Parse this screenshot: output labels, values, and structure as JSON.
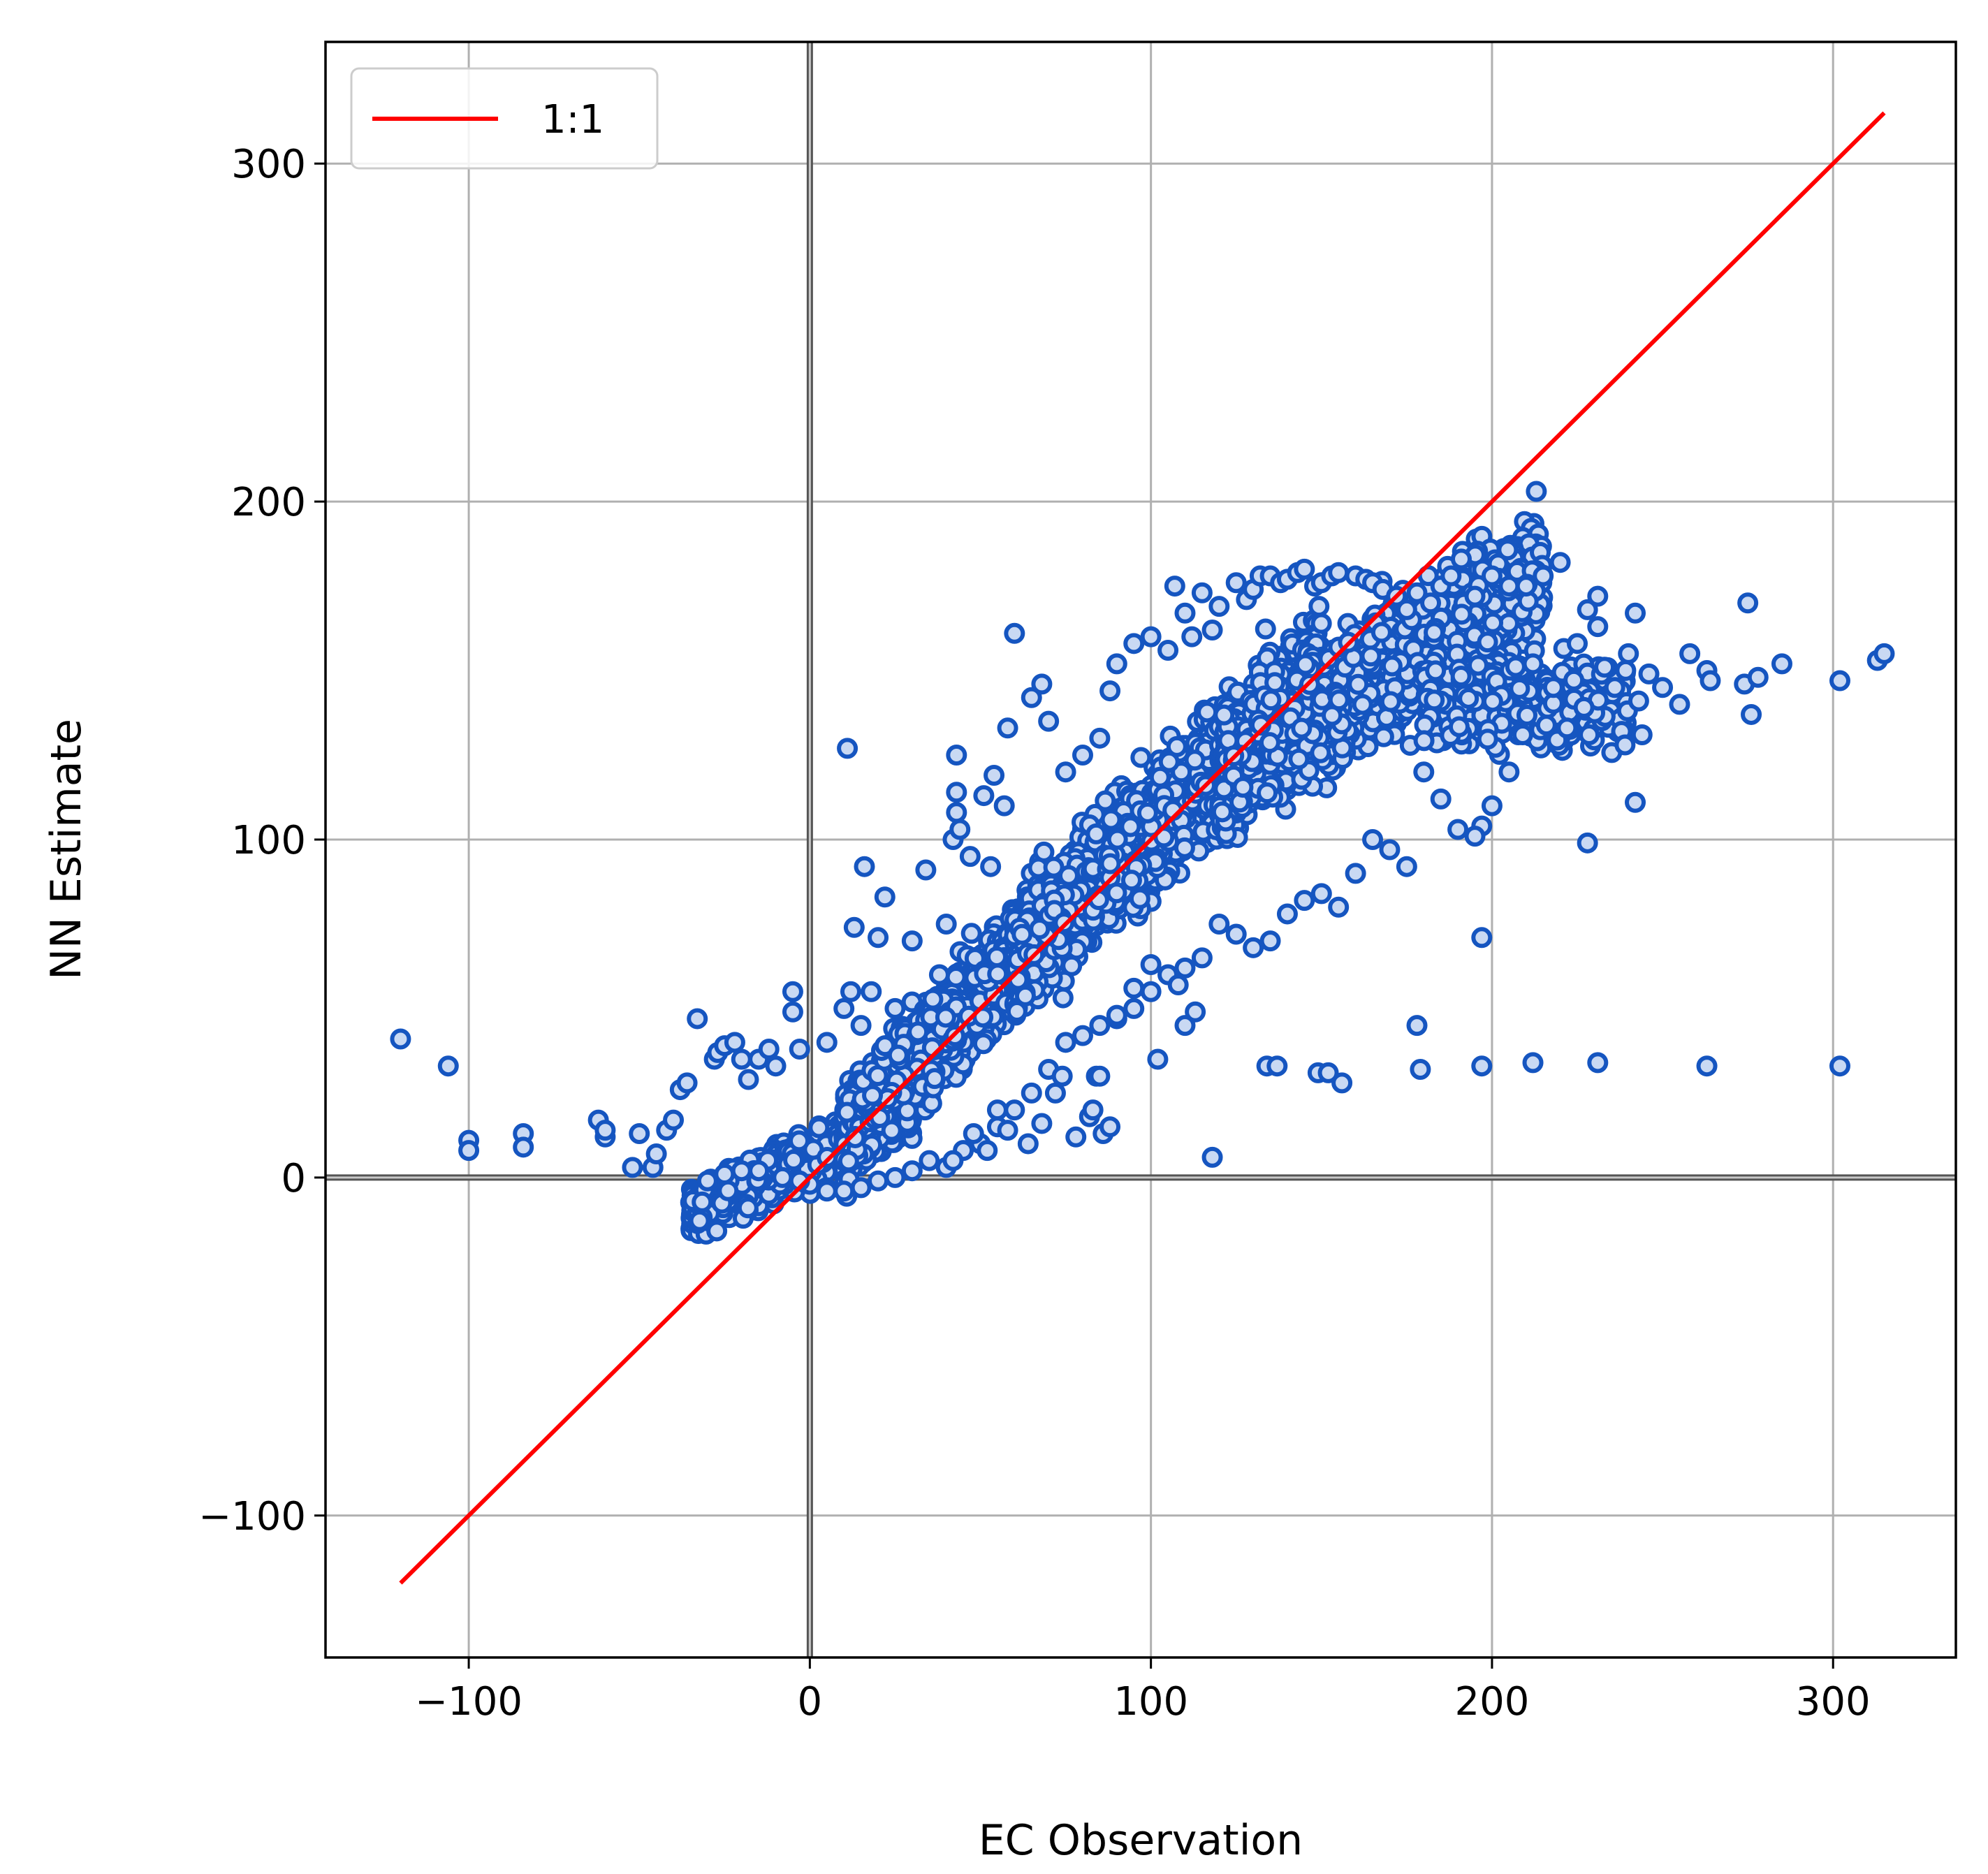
{
  "chart_data": {
    "type": "scatter",
    "title": "",
    "xlabel": "EC Observation",
    "ylabel": "NN Estimate",
    "xlim": [
      -142,
      336
    ],
    "ylim": [
      -142,
      336
    ],
    "x_ticks": [
      -100,
      0,
      100,
      200,
      300
    ],
    "y_ticks": [
      -100,
      0,
      100,
      200,
      300
    ],
    "x_tick_labels": [
      "−100",
      "0",
      "100",
      "200",
      "300"
    ],
    "y_tick_labels": [
      "−100",
      "0",
      "100",
      "200",
      "300"
    ],
    "grid": true,
    "legend": {
      "position": "top-left",
      "entries": [
        {
          "label": "1:1",
          "color": "#ff0000",
          "kind": "line"
        }
      ]
    },
    "reference_line": {
      "name": "1:1",
      "x": [
        -120,
        315
      ],
      "y": [
        -120,
        315
      ],
      "color": "#ff0000"
    },
    "zero_lines": {
      "x": 0,
      "y": 0
    },
    "scatter": {
      "marker": "open-circle",
      "edge_color": "#1555c0",
      "face_color": "#c9d9f3",
      "dense_regions": [
        {
          "n": 1100,
          "x_range": [
            -35,
            30
          ],
          "x_c": -2,
          "y_intercept": 6,
          "slope": 0.45,
          "y_spread": 7
        },
        {
          "n": 2000,
          "x_range": [
            10,
            85
          ],
          "x_c": 47,
          "y_intercept": 2,
          "slope": 1.05,
          "y_spread": 13
        },
        {
          "n": 2200,
          "x_range": [
            60,
            150
          ],
          "x_c": 105,
          "y_intercept": 8,
          "slope": 0.95,
          "y_spread": 16
        },
        {
          "n": 1600,
          "x_range": [
            120,
            215
          ],
          "x_c": 165,
          "y_intercept": 40,
          "slope": 0.65,
          "y_spread": 17
        },
        {
          "n": 400,
          "x_range": [
            180,
            240
          ],
          "x_c": 210,
          "y_intercept": 140,
          "slope": 0.0,
          "y_spread": 12
        }
      ],
      "points": [
        [
          -120,
          41
        ],
        [
          -106,
          33
        ],
        [
          -100,
          11
        ],
        [
          -100,
          8
        ],
        [
          -84,
          13
        ],
        [
          -84,
          9
        ],
        [
          -62,
          17
        ],
        [
          -60,
          12
        ],
        [
          -60,
          14
        ],
        [
          -52,
          3
        ],
        [
          -50,
          13
        ],
        [
          -46,
          3
        ],
        [
          -45,
          7
        ],
        [
          -42,
          14
        ],
        [
          -40,
          17
        ],
        [
          -38,
          26
        ],
        [
          -36,
          28
        ],
        [
          -33,
          47
        ],
        [
          -28,
          35
        ],
        [
          -27,
          37
        ],
        [
          -25,
          39
        ],
        [
          -22,
          40
        ],
        [
          -20,
          35
        ],
        [
          -18,
          29
        ],
        [
          -15,
          35
        ],
        [
          -12,
          38
        ],
        [
          -10,
          33
        ],
        [
          -5,
          55
        ],
        [
          -5,
          49
        ],
        [
          -3,
          38
        ],
        [
          5,
          40
        ],
        [
          10,
          50
        ],
        [
          12,
          55
        ],
        [
          15,
          45
        ],
        [
          11,
          127
        ],
        [
          13,
          74
        ],
        [
          16,
          92
        ],
        [
          18,
          55
        ],
        [
          20,
          71
        ],
        [
          22,
          83
        ],
        [
          25,
          50
        ],
        [
          30,
          70
        ],
        [
          34,
          91
        ],
        [
          38,
          60
        ],
        [
          40,
          75
        ],
        [
          42,
          100
        ],
        [
          43,
          108
        ],
        [
          43,
          114
        ],
        [
          43,
          125
        ],
        [
          44,
          103
        ],
        [
          47,
          95
        ],
        [
          51,
          113
        ],
        [
          53,
          92
        ],
        [
          54,
          119
        ],
        [
          57,
          110
        ],
        [
          58,
          133
        ],
        [
          60,
          161
        ],
        [
          65,
          142
        ],
        [
          68,
          146
        ],
        [
          70,
          135
        ],
        [
          75,
          120
        ],
        [
          80,
          125
        ],
        [
          85,
          130
        ],
        [
          88,
          144
        ],
        [
          90,
          152
        ],
        [
          95,
          158
        ],
        [
          100,
          160
        ],
        [
          105,
          156
        ],
        [
          107,
          175
        ],
        [
          110,
          167
        ],
        [
          112,
          160
        ],
        [
          115,
          173
        ],
        [
          118,
          162
        ],
        [
          120,
          169
        ],
        [
          125,
          176
        ],
        [
          128,
          171
        ],
        [
          130,
          174
        ],
        [
          132,
          178
        ],
        [
          135,
          178
        ],
        [
          138,
          176
        ],
        [
          140,
          177
        ],
        [
          143,
          179
        ],
        [
          145,
          180
        ],
        [
          148,
          175
        ],
        [
          150,
          176
        ],
        [
          153,
          178
        ],
        [
          155,
          179
        ],
        [
          160,
          178
        ],
        [
          163,
          177
        ],
        [
          165,
          176
        ],
        [
          168,
          174
        ],
        [
          172,
          172
        ],
        [
          175,
          168
        ],
        [
          178,
          173
        ],
        [
          182,
          170
        ],
        [
          185,
          175
        ],
        [
          188,
          178
        ],
        [
          191,
          183
        ],
        [
          195,
          172
        ],
        [
          200,
          178
        ],
        [
          205,
          175
        ],
        [
          210,
          175
        ],
        [
          215,
          178
        ],
        [
          220,
          182
        ],
        [
          225,
          158
        ],
        [
          228,
          168
        ],
        [
          231,
          172
        ],
        [
          231,
          163
        ],
        [
          233,
          151
        ],
        [
          236,
          145
        ],
        [
          238,
          132
        ],
        [
          239,
          128
        ],
        [
          240,
          155
        ],
        [
          242,
          167
        ],
        [
          243,
          141
        ],
        [
          244,
          131
        ],
        [
          246,
          149
        ],
        [
          242,
          111
        ],
        [
          228,
          99
        ],
        [
          222,
          133
        ],
        [
          218,
          145
        ],
        [
          212,
          152
        ],
        [
          209,
          131
        ],
        [
          205,
          120
        ],
        [
          200,
          110
        ],
        [
          197,
          104
        ],
        [
          195,
          101
        ],
        [
          190,
          103
        ],
        [
          185,
          112
        ],
        [
          180,
          120
        ],
        [
          175,
          92
        ],
        [
          170,
          97
        ],
        [
          165,
          100
        ],
        [
          160,
          90
        ],
        [
          155,
          80
        ],
        [
          150,
          84
        ],
        [
          145,
          82
        ],
        [
          140,
          78
        ],
        [
          135,
          70
        ],
        [
          130,
          68
        ],
        [
          125,
          72
        ],
        [
          120,
          75
        ],
        [
          115,
          65
        ],
        [
          110,
          62
        ],
        [
          105,
          60
        ],
        [
          100,
          55
        ],
        [
          95,
          50
        ],
        [
          90,
          47
        ],
        [
          85,
          45
        ],
        [
          80,
          42
        ],
        [
          75,
          40
        ],
        [
          70,
          32
        ],
        [
          65,
          25
        ],
        [
          60,
          20
        ],
        [
          55,
          15
        ],
        [
          50,
          10
        ],
        [
          45,
          8
        ],
        [
          40,
          3
        ],
        [
          35,
          5
        ],
        [
          30,
          2
        ],
        [
          25,
          0
        ],
        [
          20,
          -1
        ],
        [
          15,
          -3
        ],
        [
          10,
          -4
        ],
        [
          5,
          -4
        ],
        [
          0,
          -2
        ],
        [
          -3,
          -1
        ],
        [
          -8,
          0
        ],
        [
          -15,
          2
        ],
        [
          -20,
          2
        ],
        [
          -25,
          1
        ],
        [
          -30,
          -1
        ],
        [
          42,
          5
        ],
        [
          48,
          13
        ],
        [
          52,
          8
        ],
        [
          55,
          20
        ],
        [
          58,
          14
        ],
        [
          64,
          10
        ],
        [
          68,
          16
        ],
        [
          72,
          25
        ],
        [
          74,
          30
        ],
        [
          78,
          12
        ],
        [
          82,
          18
        ],
        [
          83,
          20
        ],
        [
          84,
          30
        ],
        [
          85,
          30
        ],
        [
          86,
          13
        ],
        [
          88,
          15
        ],
        [
          90,
          48
        ],
        [
          95,
          56
        ],
        [
          100,
          63
        ],
        [
          102,
          35
        ],
        [
          108,
          57
        ],
        [
          110,
          45
        ],
        [
          113,
          49
        ],
        [
          118,
          6
        ],
        [
          134,
          33
        ],
        [
          137,
          33
        ],
        [
          149,
          31
        ],
        [
          152,
          31
        ],
        [
          156,
          28
        ],
        [
          178,
          45
        ],
        [
          179,
          32
        ],
        [
          197,
          71
        ],
        [
          197,
          33
        ],
        [
          212,
          34
        ],
        [
          231,
          34
        ],
        [
          263,
          33
        ],
        [
          302,
          33
        ],
        [
          263,
          150
        ],
        [
          264,
          147
        ],
        [
          274,
          146
        ],
        [
          275,
          170
        ],
        [
          276,
          137
        ],
        [
          278,
          148
        ],
        [
          285,
          152
        ],
        [
          302,
          147
        ],
        [
          313,
          153
        ],
        [
          315,
          155
        ],
        [
          250,
          145
        ],
        [
          255,
          140
        ],
        [
          258,
          155
        ]
      ]
    }
  }
}
